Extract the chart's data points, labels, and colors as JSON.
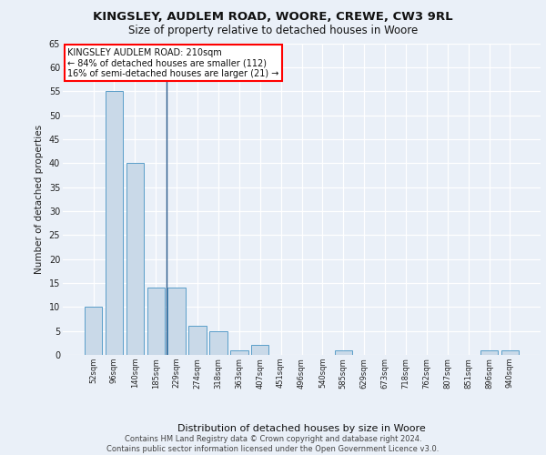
{
  "title1": "KINGSLEY, AUDLEM ROAD, WOORE, CREWE, CW3 9RL",
  "title2": "Size of property relative to detached houses in Woore",
  "xlabel": "Distribution of detached houses by size in Woore",
  "ylabel": "Number of detached properties",
  "categories": [
    "52sqm",
    "96sqm",
    "140sqm",
    "185sqm",
    "229sqm",
    "274sqm",
    "318sqm",
    "363sqm",
    "407sqm",
    "451sqm",
    "496sqm",
    "540sqm",
    "585sqm",
    "629sqm",
    "673sqm",
    "718sqm",
    "762sqm",
    "807sqm",
    "851sqm",
    "896sqm",
    "940sqm"
  ],
  "values": [
    10,
    55,
    40,
    14,
    14,
    6,
    5,
    1,
    2,
    0,
    0,
    0,
    1,
    0,
    0,
    0,
    0,
    0,
    0,
    1,
    1
  ],
  "bar_color": "#c9d9e8",
  "bar_edge_color": "#5a9ec9",
  "annotation_text": "KINGSLEY AUDLEM ROAD: 210sqm\n← 84% of detached houses are smaller (112)\n16% of semi-detached houses are larger (21) →",
  "annotation_box_color": "white",
  "annotation_box_edgecolor": "red",
  "footer_text": "Contains HM Land Registry data © Crown copyright and database right 2024.\nContains public sector information licensed under the Open Government Licence v3.0.",
  "ylim": [
    0,
    65
  ],
  "yticks": [
    0,
    5,
    10,
    15,
    20,
    25,
    30,
    35,
    40,
    45,
    50,
    55,
    60,
    65
  ],
  "bg_color": "#eaf0f8",
  "plot_bg_color": "#eaf0f8",
  "grid_color": "white",
  "vline_color": "#2a5a8a",
  "vline_x": 3.5
}
